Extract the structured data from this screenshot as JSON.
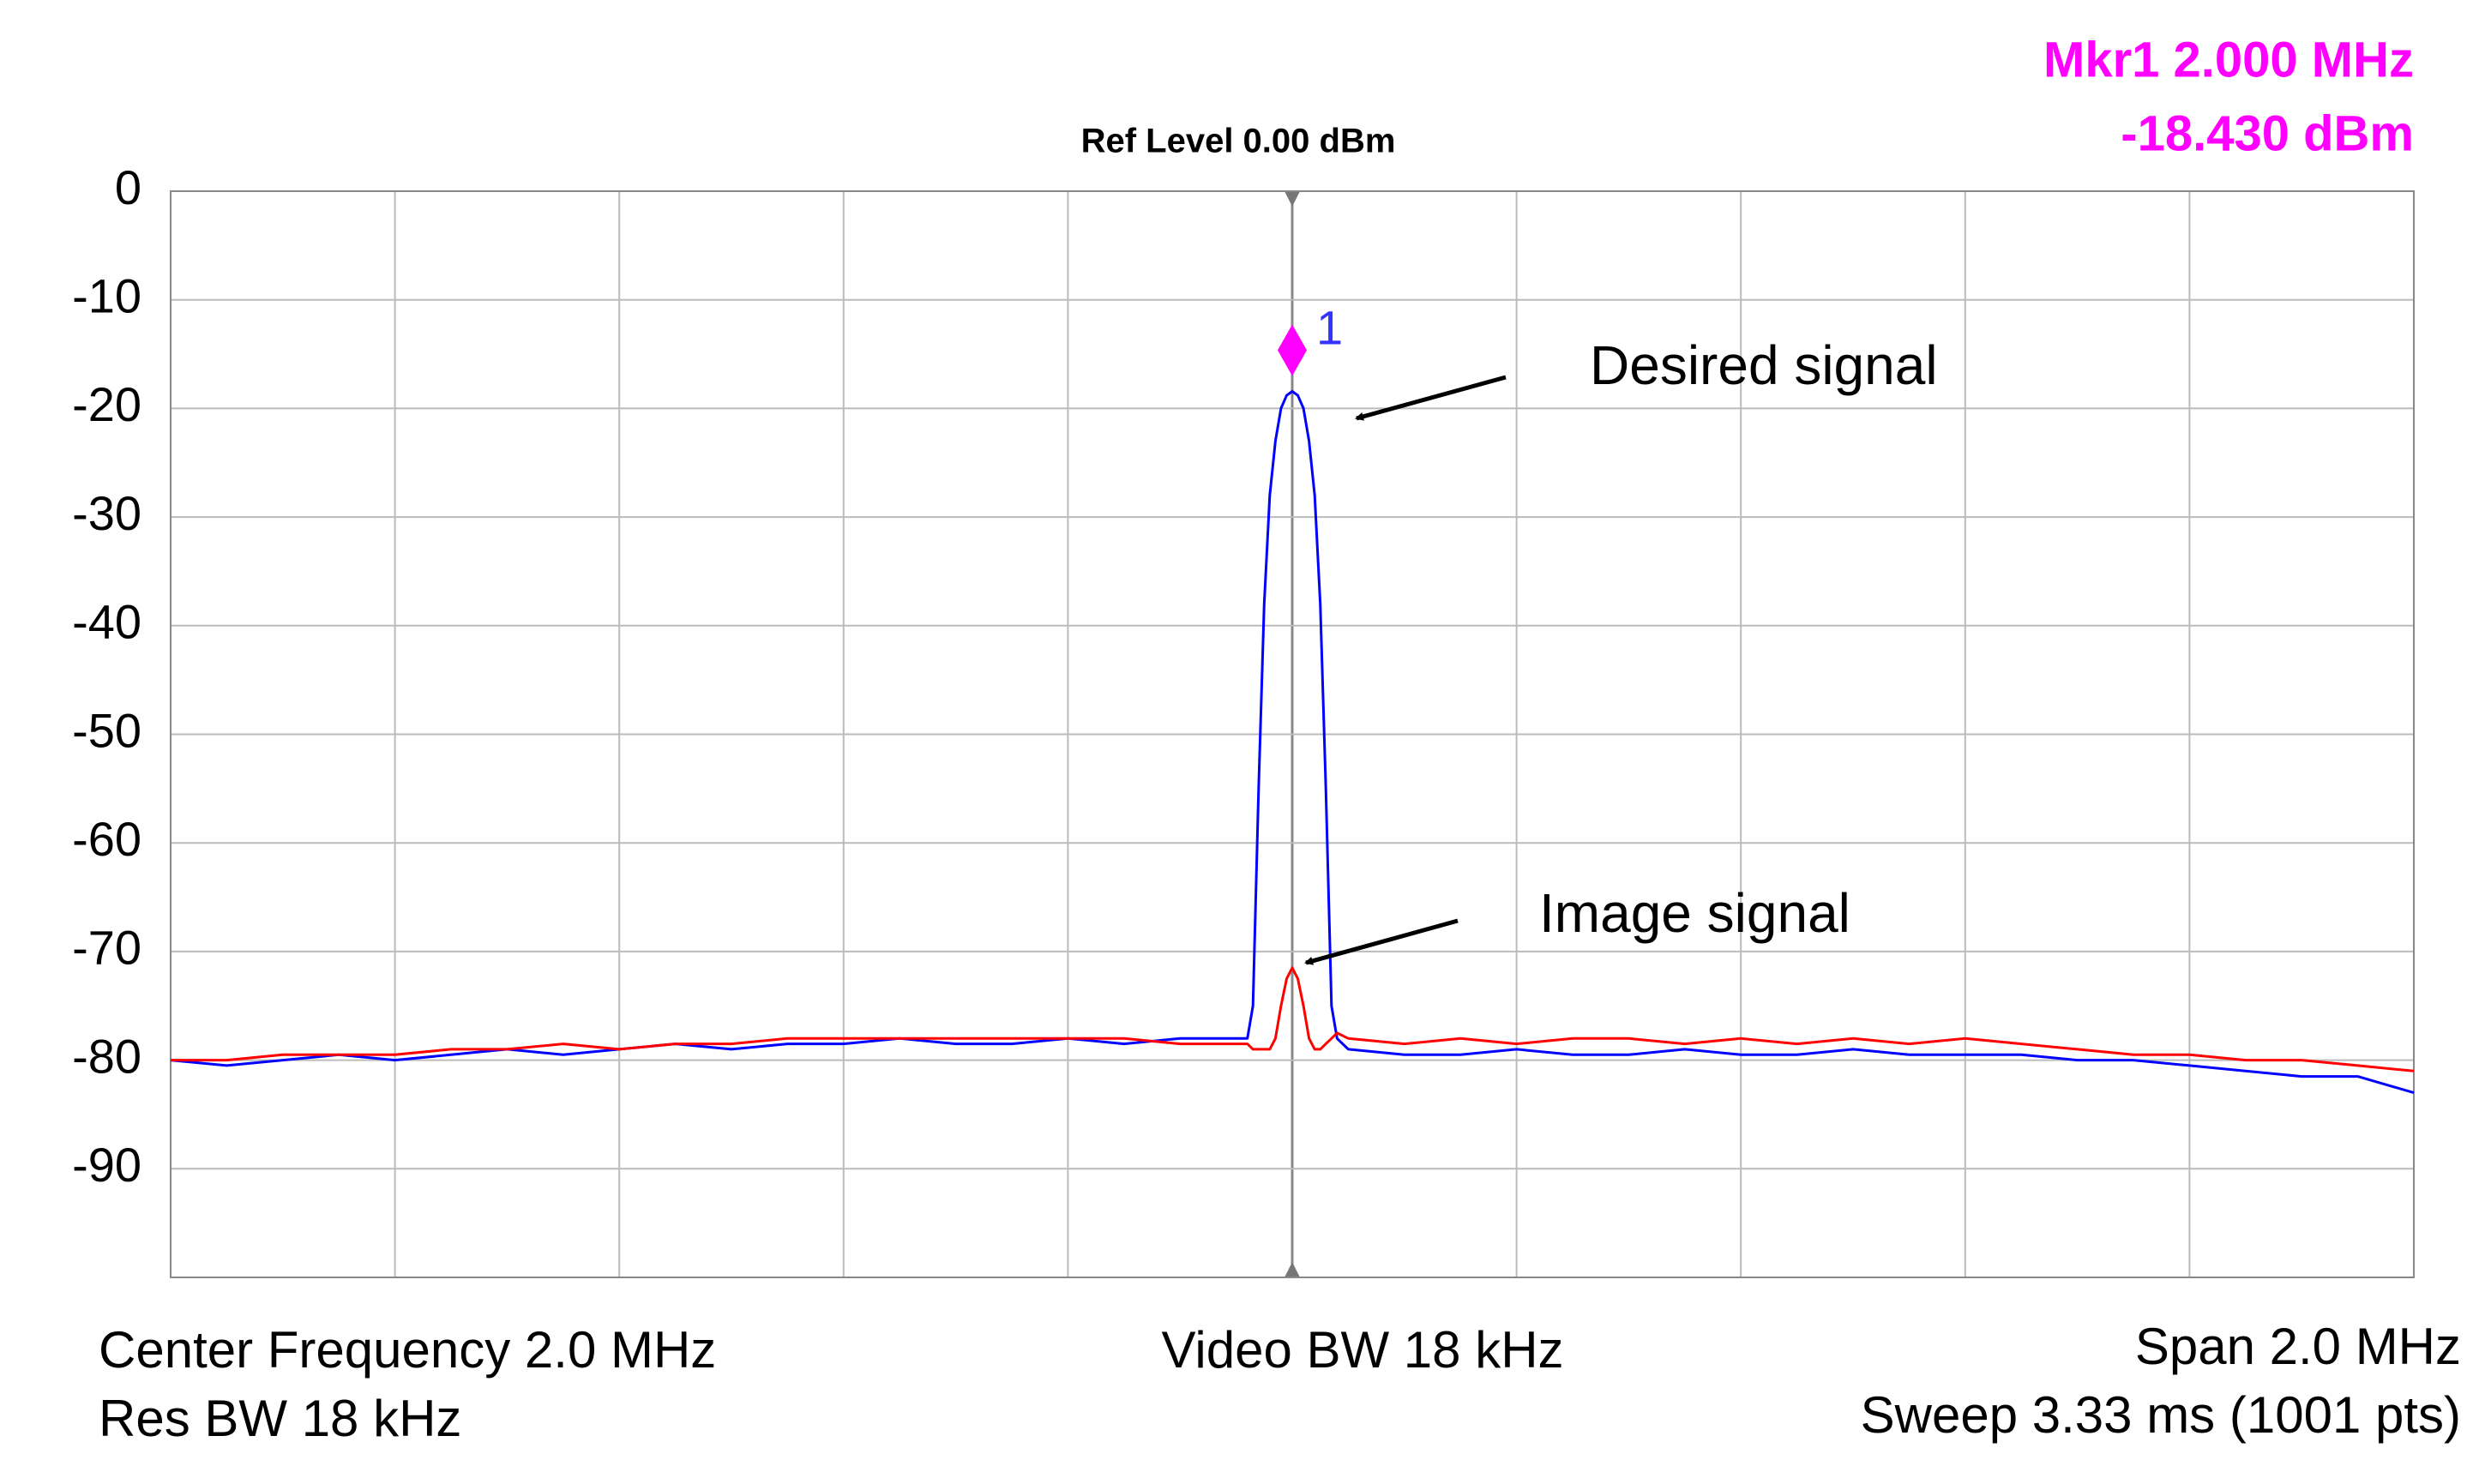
{
  "chart_data": {
    "type": "line",
    "header": "Ref Level 0.00 dBm",
    "marker_readout": [
      "Mkr1  2.000 MHz",
      "-18.430 dBm"
    ],
    "footer_left": [
      "Center Frequency 2.0 MHz",
      "Res BW 18 kHz"
    ],
    "footer_center": "Video BW 18 kHz",
    "footer_right": [
      "Span 2.0 MHz",
      "Sweep 3.33 ms (1001 pts)"
    ],
    "annotations": [
      "Desired signal",
      "Image signal"
    ],
    "marker": {
      "label": "1",
      "x": 2.0,
      "y": -18.43,
      "color": "#ff00ff"
    },
    "xlim": [
      1.0,
      3.0
    ],
    "ylim": [
      -100,
      0
    ],
    "yticks": [
      0,
      -10,
      -20,
      -30,
      -40,
      -50,
      -60,
      -70,
      -80,
      -90
    ],
    "grid": true,
    "x": [
      1.0,
      1.05,
      1.1,
      1.15,
      1.2,
      1.25,
      1.3,
      1.35,
      1.4,
      1.45,
      1.5,
      1.55,
      1.6,
      1.65,
      1.7,
      1.75,
      1.8,
      1.85,
      1.9,
      1.95,
      1.96,
      1.965,
      1.97,
      1.975,
      1.98,
      1.985,
      1.99,
      1.995,
      2.0,
      2.005,
      2.01,
      2.015,
      2.02,
      2.025,
      2.03,
      2.035,
      2.04,
      2.05,
      2.1,
      2.15,
      2.2,
      2.25,
      2.3,
      2.35,
      2.4,
      2.45,
      2.5,
      2.55,
      2.6,
      2.65,
      2.7,
      2.75,
      2.8,
      2.85,
      2.9,
      2.95,
      3.0
    ],
    "series": [
      {
        "color": "#0000ff",
        "values": [
          -80,
          -80.5,
          -80,
          -79.5,
          -80,
          -79.5,
          -79,
          -79.5,
          -79,
          -78.5,
          -79,
          -78.5,
          -78.5,
          -78,
          -78.5,
          -78.5,
          -78,
          -78.5,
          -78,
          -78,
          -78,
          -75,
          -55,
          -38,
          -28,
          -23,
          -20,
          -18.8,
          -18.43,
          -18.8,
          -20,
          -23,
          -28,
          -38,
          -55,
          -75,
          -78,
          -79,
          -79.5,
          -79.5,
          -79,
          -79.5,
          -79.5,
          -79,
          -79.5,
          -79.5,
          -79,
          -79.5,
          -79.5,
          -79.5,
          -80,
          -80,
          -80.5,
          -81,
          -81.5,
          -81.5,
          -83
        ]
      },
      {
        "color": "#ff0000",
        "values": [
          -80,
          -80,
          -79.5,
          -79.5,
          -79.5,
          -79,
          -79,
          -78.5,
          -79,
          -78.5,
          -78.5,
          -78,
          -78,
          -78,
          -78,
          -78,
          -78,
          -78,
          -78.5,
          -78.5,
          -78.5,
          -79,
          -79,
          -79,
          -79,
          -78,
          -75,
          -72.5,
          -71.5,
          -72.5,
          -75,
          -78,
          -79,
          -79,
          -78.5,
          -78,
          -77.5,
          -78,
          -78.5,
          -78,
          -78.5,
          -78,
          -78,
          -78.5,
          -78,
          -78.5,
          -78,
          -78.5,
          -78,
          -78.5,
          -79,
          -79.5,
          -79.5,
          -80,
          -80,
          -80.5,
          -81
        ]
      }
    ]
  }
}
